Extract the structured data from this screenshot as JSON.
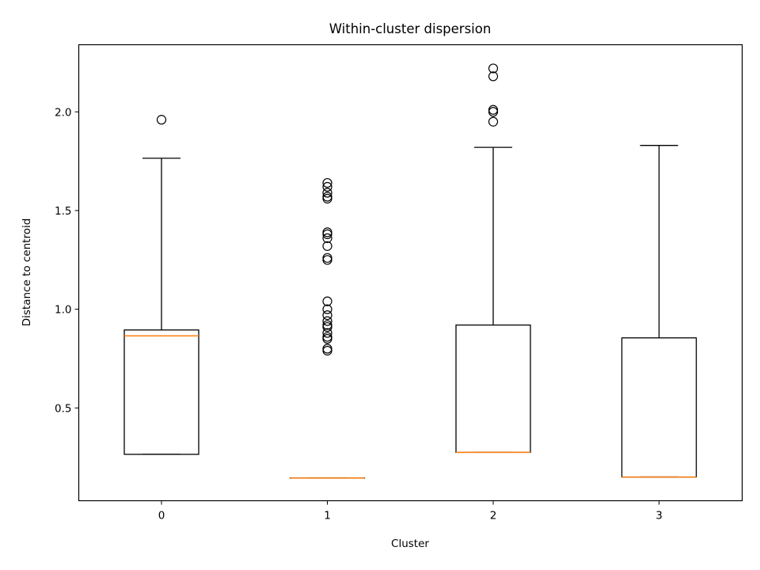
{
  "chart_data": {
    "type": "box",
    "title": "Within-cluster dispersion",
    "xlabel": "Cluster",
    "ylabel": "Distance to centroid",
    "categories": [
      "0",
      "1",
      "2",
      "3"
    ],
    "ylim": [
      0.03,
      2.34
    ],
    "yticks": [
      0.5,
      1.0,
      1.5,
      2.0
    ],
    "ytick_labels": [
      "0.5",
      "1.0",
      "1.5",
      "2.0"
    ],
    "grid": false,
    "colors": {
      "box": "#000000",
      "median": "#ff7f0e",
      "flier": "#000000"
    },
    "boxes": [
      {
        "category": "0",
        "whisker_low": 0.265,
        "q1": 0.265,
        "median": 0.865,
        "q3": 0.895,
        "whisker_high": 1.765,
        "fliers": [
          1.96
        ]
      },
      {
        "category": "1",
        "whisker_low": 0.145,
        "q1": 0.145,
        "median": 0.145,
        "q3": 0.145,
        "whisker_high": 0.145,
        "fliers": [
          0.79,
          0.8,
          0.85,
          0.86,
          0.88,
          0.91,
          0.92,
          0.94,
          0.97,
          1.0,
          1.04,
          1.25,
          1.26,
          1.32,
          1.36,
          1.38,
          1.39,
          1.56,
          1.57,
          1.59,
          1.62,
          1.64
        ]
      },
      {
        "category": "2",
        "whisker_low": 0.275,
        "q1": 0.275,
        "median": 0.275,
        "q3": 0.92,
        "whisker_high": 1.82,
        "fliers": [
          1.95,
          2.0,
          2.01,
          2.18,
          2.22
        ]
      },
      {
        "category": "3",
        "whisker_low": 0.15,
        "q1": 0.15,
        "median": 0.15,
        "q3": 0.855,
        "whisker_high": 1.83,
        "fliers": []
      }
    ]
  }
}
